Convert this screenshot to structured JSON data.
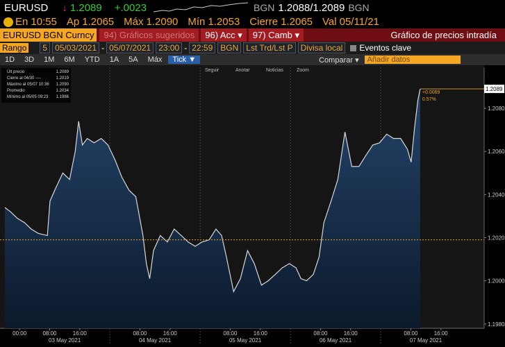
{
  "quote": {
    "ticker": "EURUSD",
    "arrow": "↓",
    "last": "1.2089",
    "change": "+.0023",
    "bid_source": "BGN",
    "bid_ask": "1.2088/1.2089",
    "ask_source": "BGN"
  },
  "stats": [
    {
      "label": "En",
      "value": "10:55"
    },
    {
      "label": "Ap",
      "value": "1.2065"
    },
    {
      "label": "Máx",
      "value": "1.2090"
    },
    {
      "label": "Mín",
      "value": "1.2053"
    },
    {
      "label": "Cierre",
      "value": "1.2065"
    },
    {
      "label": "Val",
      "value": "05/11/21"
    }
  ],
  "toolbar": {
    "security": "EURUSD BGN Curncy",
    "buttons": [
      "94) Gráficos sugeridos",
      "96) Acc ▾",
      "97) Camb ▾"
    ],
    "title": "Gráfico de precios intradía"
  },
  "range": {
    "label": "Rango",
    "count": "5",
    "start_date": "05/03/2021",
    "dash": "-",
    "end_date": "05/07/2021",
    "start_time": "23:00",
    "end_time": "22:59",
    "source": "BGN",
    "field": "Lst Trd/Lst P",
    "currency": "Divisa local",
    "events": "Eventos clave"
  },
  "periods": [
    "1D",
    "3D",
    "1M",
    "6M",
    "YTD",
    "1A",
    "5A",
    "Máx"
  ],
  "tick": "Tick ▼",
  "compare": "Comparar ▾",
  "add_data": "Añadir datos",
  "chart_tools": [
    "Seguir",
    "Anotar",
    "Noticias",
    "Zoom"
  ],
  "chart_legend": [
    {
      "label": "Últ precio",
      "value": "1.2089"
    },
    {
      "label": "Cierre al 04/30 ----",
      "value": "1.2019"
    },
    {
      "label": "Máximo al 05/07 10:36",
      "value": "1.2090"
    },
    {
      "label": "Promedio",
      "value": "1.2034"
    },
    {
      "label": "Mínimo al 05/05 09:23",
      "value": "1.1986"
    }
  ],
  "chart_data": {
    "type": "line",
    "x": [
      -3.9,
      -2.4,
      -0.6,
      1.3,
      3.1,
      5.0,
      7.4,
      8.1,
      9.6,
      11.5,
      13.3,
      14.8,
      15.7,
      16.7,
      18.0,
      19.8,
      21.7,
      23.5,
      25.4,
      27.2,
      29.1,
      30.9,
      32.8,
      33.7,
      34.6,
      35.6,
      37.4,
      39.3,
      41.1,
      43.0,
      44.8,
      46.7,
      48.5,
      50.4,
      52.2,
      53.7,
      55.0,
      56.9,
      58.7,
      60.6,
      62.4,
      64.3,
      66.1,
      68.0,
      69.8,
      71.7,
      73.5,
      74.8,
      76.3,
      78.1,
      79.6,
      80.9,
      82.8,
      84.6,
      86.5,
      88.3,
      90.2,
      92.0,
      93.9,
      95.7,
      97.6,
      99.4,
      101.3,
      103.1,
      104.1,
      105.0,
      105.9,
      106.5
    ],
    "values": [
      1.2034,
      1.2032,
      1.2029,
      1.2027,
      1.2024,
      1.2022,
      1.2021,
      1.2037,
      1.2043,
      1.205,
      1.2047,
      1.206,
      1.2074,
      1.2063,
      1.2066,
      1.2064,
      1.2066,
      1.2063,
      1.2056,
      1.2048,
      1.2042,
      1.2039,
      1.2021,
      1.2008,
      1.2001,
      1.2014,
      1.2021,
      1.2018,
      1.2024,
      1.2021,
      1.2018,
      1.2016,
      1.2018,
      1.2019,
      1.2024,
      1.2021,
      1.2011,
      1.1995,
      1.2001,
      1.2014,
      1.2008,
      1.1998,
      1.2,
      1.2003,
      1.2006,
      1.2008,
      1.2006,
      1.2001,
      1.2,
      1.2003,
      1.2011,
      1.2027,
      1.2037,
      1.2047,
      1.2069,
      1.2053,
      1.2053,
      1.2058,
      1.2063,
      1.2064,
      1.2068,
      1.2066,
      1.2066,
      1.2061,
      1.2055,
      1.2071,
      1.2084,
      1.2089
    ],
    "color": "#d8d8d8",
    "xlim": [
      -5.2,
      123.5
    ],
    "ylim": [
      1.1978,
      1.2099
    ],
    "yticks": [
      {
        "value": 1.198,
        "label": "1.1980"
      },
      {
        "value": 1.2,
        "label": "1.2000"
      },
      {
        "value": 1.202,
        "label": "1.2020"
      },
      {
        "value": 1.204,
        "label": "1.2040"
      },
      {
        "value": 1.206,
        "label": "1.2060"
      },
      {
        "value": 1.208,
        "label": "1.2080"
      }
    ],
    "xticks": [
      {
        "value": 0,
        "label": "00:00"
      },
      {
        "value": 8,
        "label": "08:00"
      },
      {
        "value": 16,
        "label": "16:00"
      },
      {
        "value": 32,
        "label": "08:00"
      },
      {
        "value": 40,
        "label": "16:00"
      },
      {
        "value": 56,
        "label": "08:00"
      },
      {
        "value": 64,
        "label": "16:00"
      },
      {
        "value": 80,
        "label": "08:00"
      },
      {
        "value": 88,
        "label": "16:00"
      },
      {
        "value": 104,
        "label": "08:00"
      },
      {
        "value": 112,
        "label": "16:00"
      }
    ],
    "date_labels": [
      {
        "value": 12,
        "label": "03 May 2021"
      },
      {
        "value": 36,
        "label": "04 May 2021"
      },
      {
        "value": 60,
        "label": "05 May 2021"
      },
      {
        "value": 84,
        "label": "06 May 2021"
      },
      {
        "value": 108,
        "label": "07 May 2021"
      }
    ],
    "reference_line": {
      "value": 1.2019,
      "color": "#f0a020"
    },
    "last_line": {
      "value": 1.2089,
      "label": "1.2089",
      "change": "+0.0069",
      "percent": "0.57%"
    }
  }
}
